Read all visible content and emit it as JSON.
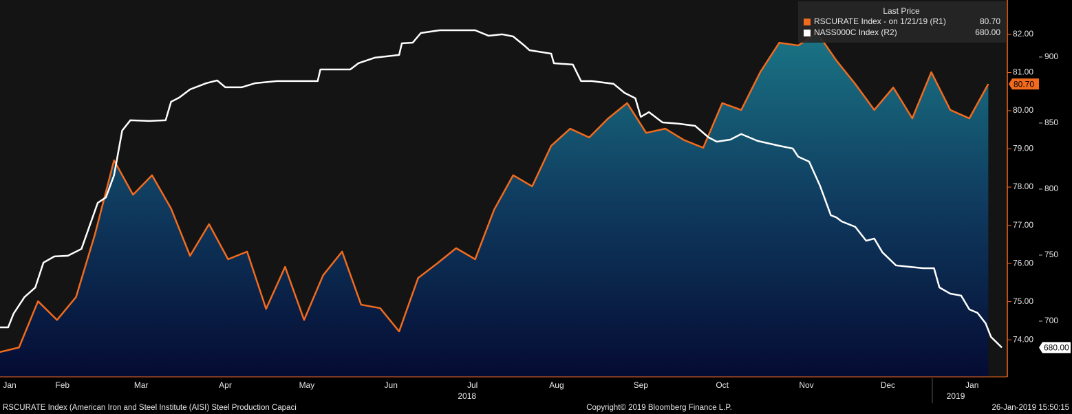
{
  "chart_data": {
    "type": "line",
    "legend_title": "Last Price",
    "xlim": [
      22,
      393
    ],
    "xticks": [
      {
        "value": 24,
        "label": "Jan"
      },
      {
        "value": 45,
        "label": "Feb"
      },
      {
        "value": 74,
        "label": "Mar"
      },
      {
        "value": 105,
        "label": "Apr"
      },
      {
        "value": 135,
        "label": "May"
      },
      {
        "value": 166,
        "label": "Jun"
      },
      {
        "value": 196,
        "label": "Jul"
      },
      {
        "value": 227,
        "label": "Aug"
      },
      {
        "value": 258,
        "label": "Sep"
      },
      {
        "value": 288,
        "label": "Oct"
      },
      {
        "value": 319,
        "label": "Nov"
      },
      {
        "value": 349,
        "label": "Dec"
      },
      {
        "value": 380,
        "label": "Jan"
      }
    ],
    "year_ticks": [
      {
        "value": 194,
        "label": "2018"
      },
      {
        "value": 374,
        "label": "2019"
      }
    ],
    "ylim": [
      73.03,
      82.9
    ],
    "yticks": [
      {
        "value": 74,
        "label": "74.00"
      },
      {
        "value": 75,
        "label": "75.00"
      },
      {
        "value": 76,
        "label": "76.00"
      },
      {
        "value": 77,
        "label": "77.00"
      },
      {
        "value": 78,
        "label": "78.00"
      },
      {
        "value": 79,
        "label": "79.00"
      },
      {
        "value": 80,
        "label": "80.00"
      },
      {
        "value": 81,
        "label": "81.00"
      },
      {
        "value": 82,
        "label": "82.00"
      }
    ],
    "y2lim": [
      657.8,
      943.2
    ],
    "y2ticks": [
      700,
      750,
      800,
      850,
      900
    ],
    "series": [
      {
        "name": "RSCURATE Index -  on 1/21/19  (R1)",
        "color": "#f26b1d",
        "area": true,
        "axis": "y",
        "last_price": {
          "value": 80.7,
          "label": "80.70"
        },
        "x": [
          22,
          29,
          36,
          43,
          50,
          57,
          64,
          71,
          78,
          85,
          92,
          99,
          106,
          113,
          120,
          127,
          134,
          141,
          148,
          155,
          162,
          169,
          176,
          183,
          190,
          197,
          204,
          211,
          218,
          225,
          232,
          239,
          246,
          253,
          260,
          267,
          274,
          281,
          288,
          295,
          302,
          309,
          316,
          323,
          330,
          337,
          344,
          351,
          358,
          365,
          372,
          379,
          386
        ],
        "values": [
          73.68,
          73.8,
          75.01,
          74.52,
          75.12,
          76.77,
          78.7,
          77.8,
          78.31,
          77.44,
          76.2,
          77.03,
          76.11,
          76.31,
          74.81,
          75.91,
          74.52,
          75.69,
          76.31,
          74.92,
          74.83,
          74.22,
          75.62,
          76.0,
          76.4,
          76.11,
          77.41,
          78.31,
          78.02,
          79.08,
          79.53,
          79.3,
          79.8,
          80.2,
          79.42,
          79.53,
          79.23,
          79.03,
          80.2,
          80.02,
          81.01,
          81.78,
          81.71,
          82.04,
          81.32,
          80.7,
          80.02,
          80.61,
          79.8,
          81.01,
          80.02,
          79.8,
          80.7
        ]
      },
      {
        "name": "NASS000C Index  (R2)",
        "color": "#ffffff",
        "area": false,
        "axis": "y2",
        "last_price": {
          "value": 680,
          "label": "680.00"
        },
        "x": [
          22,
          25,
          27,
          31,
          35,
          38,
          42,
          47,
          52,
          58,
          61,
          64,
          67,
          70,
          77,
          83,
          85,
          88,
          92,
          98,
          102,
          105,
          111,
          116,
          124,
          139,
          140,
          151,
          154,
          160,
          169,
          170,
          174,
          177,
          184,
          197,
          202,
          207,
          211,
          215,
          217,
          225,
          226,
          233,
          236,
          240,
          248,
          252,
          256,
          258,
          261,
          266,
          272,
          278,
          283,
          286,
          291,
          295,
          301,
          309,
          314,
          316,
          320,
          324,
          328,
          330,
          332,
          337,
          341,
          344,
          347,
          352,
          357,
          362,
          366,
          368,
          372,
          376,
          379,
          382,
          385,
          387,
          391
        ],
        "values": [
          695.3,
          695.3,
          705.7,
          718.2,
          725.5,
          744.3,
          749.0,
          749.5,
          754.7,
          789.6,
          793.7,
          810.4,
          844.3,
          852.1,
          851.6,
          852.1,
          866.1,
          869.3,
          875.5,
          880.2,
          882.3,
          877.1,
          877.1,
          880.2,
          881.8,
          881.8,
          890.6,
          890.6,
          895.3,
          899.5,
          901.6,
          910.4,
          910.9,
          918.2,
          920.3,
          920.3,
          916.1,
          917.2,
          915.6,
          908.9,
          905.2,
          902.6,
          895.3,
          894.3,
          881.8,
          881.8,
          879.7,
          872.9,
          868.8,
          854.7,
          858.3,
          850.5,
          849.5,
          847.9,
          839.1,
          835.9,
          837.5,
          841.7,
          836.5,
          832.8,
          830.7,
          824.5,
          820.8,
          802.6,
          780.2,
          778.6,
          775.5,
          771.4,
          760.9,
          762.5,
          752.1,
          742.2,
          741.1,
          740.1,
          740.1,
          725.5,
          720.8,
          719.3,
          708.9,
          706.3,
          698.4,
          688.0,
          680.0
        ]
      }
    ],
    "footnote": "RSCURATE Index (American Iron and Steel Institute (AISI) Steel Production Capaci",
    "copyright": "Copyright© 2019 Bloomberg Finance L.P.",
    "timestamp": "26-Jan-2019 15:50:15"
  }
}
